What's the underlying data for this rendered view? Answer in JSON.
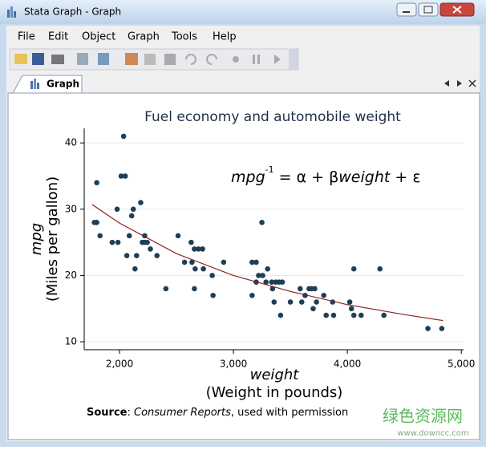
{
  "window": {
    "title": "Stata Graph - Graph",
    "menu": [
      "File",
      "Edit",
      "Object",
      "Graph",
      "Tools",
      "Help"
    ],
    "tab": "Graph",
    "watermark": [
      "绿色资源网",
      "www.downcc.com"
    ]
  },
  "chart_data": {
    "type": "scatter",
    "title": "Fuel economy and automobile weight",
    "equation": [
      "mpg",
      "-1",
      " = α + β",
      "weight",
      " + ε"
    ],
    "y_label": [
      "mpg",
      "(Miles per gallon)"
    ],
    "x_label": [
      "weight",
      "(Weight in pounds)"
    ],
    "note": [
      "Source",
      ": ",
      "Consumer Reports",
      ", used with permission"
    ],
    "xlim": [
      1690,
      5020
    ],
    "ylim": [
      8.8,
      42.2
    ],
    "xticks": [
      {
        "value": 2000,
        "label": "2,000"
      },
      {
        "value": 3000,
        "label": "3,000"
      },
      {
        "value": 4000,
        "label": "4,000"
      },
      {
        "value": 5000,
        "label": "5,000"
      }
    ],
    "yticks": [
      10,
      20,
      30,
      40
    ],
    "grid": true,
    "series": [
      {
        "type": "scatter",
        "color": "#1f3f57",
        "x": [
          1779,
          1800,
          1800,
          1829,
          1936,
          1979,
          1986,
          2014,
          2036,
          2050,
          2064,
          2086,
          2107,
          2121,
          2136,
          2150,
          2186,
          2200,
          2221,
          2221,
          2243,
          2271,
          2329,
          2407,
          2514,
          2571,
          2629,
          2636,
          2657,
          2657,
          2664,
          2693,
          2729,
          2736,
          2814,
          2821,
          2914,
          3164,
          3164,
          3200,
          3200,
          3221,
          3250,
          3257,
          3286,
          3300,
          3336,
          3343,
          3357,
          3371,
          3400,
          3414,
          3429,
          3500,
          3586,
          3600,
          3629,
          3664,
          3686,
          3700,
          3714,
          3729,
          3793,
          3814,
          3871,
          3879,
          4021,
          4036,
          4057,
          4057,
          4121,
          4286,
          4321,
          4707,
          4829
        ],
        "values": [
          28,
          28,
          34,
          26,
          25,
          30,
          25,
          35,
          41,
          35,
          23,
          26,
          29,
          30,
          21,
          23,
          31,
          25,
          25,
          26,
          25,
          24,
          23,
          18,
          26,
          22,
          25,
          22,
          18,
          24,
          21,
          24,
          24,
          21,
          20,
          17,
          22,
          17,
          22,
          22,
          19,
          20,
          28,
          20,
          19,
          21,
          19,
          18,
          16,
          19,
          19,
          14,
          19,
          16,
          18,
          16,
          17,
          18,
          18,
          15,
          18,
          16,
          17,
          14,
          16,
          14,
          16,
          15,
          14,
          21,
          14,
          21,
          14,
          12,
          12
        ]
      },
      {
        "type": "line",
        "color": "#8b2323",
        "x": [
          1760,
          2000,
          2500,
          3000,
          3500,
          4000,
          4500,
          4840
        ],
        "values": [
          30.7,
          27.9,
          23.3,
          20.0,
          17.6,
          15.6,
          14.1,
          13.2
        ]
      }
    ]
  }
}
